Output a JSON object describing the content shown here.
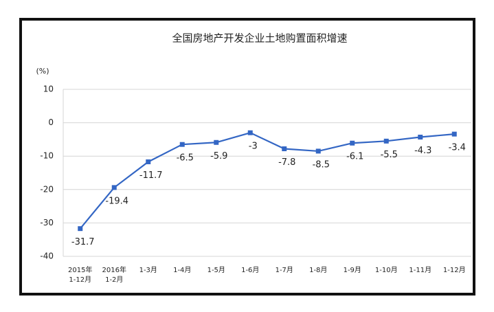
{
  "chart_data": {
    "type": "line",
    "title": "全国房地产开发企业土地购置面积增速",
    "y_label": "(%)",
    "categories": [
      "2015年\n1-12月",
      "2016年\n1-2月",
      "1-3月",
      "1-4月",
      "1-5月",
      "1-6月",
      "1-7月",
      "1-8月",
      "1-9月",
      "1-10月",
      "1-11月",
      "1-12月"
    ],
    "series": [
      {
        "color": "#3366c4",
        "values": [
          -31.7,
          -19.4,
          -11.7,
          -6.5,
          -5.9,
          -3.0,
          -7.8,
          -8.5,
          -6.1,
          -5.5,
          -4.3,
          -3.4
        ]
      }
    ],
    "ylim": [
      -40,
      10
    ],
    "yticks": [
      -40,
      -30,
      -20,
      -10,
      0,
      10
    ],
    "grid": true
  }
}
